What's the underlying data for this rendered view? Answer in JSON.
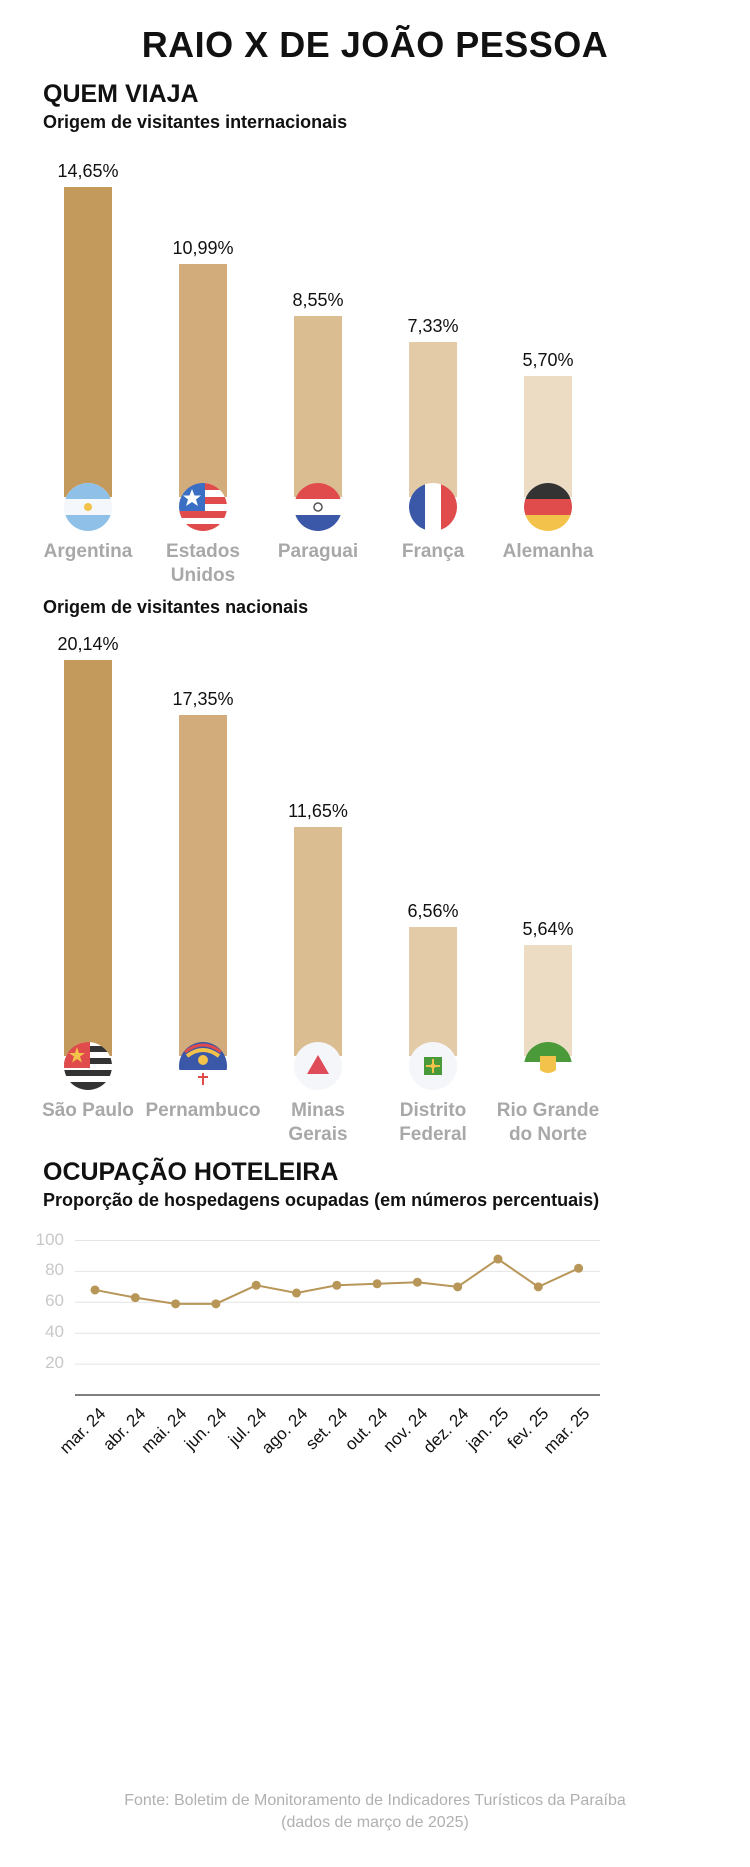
{
  "title": "RAIO X DE JOÃO PESSOA",
  "section1": {
    "heading": "QUEM VIAJA",
    "international": {
      "subtitle": "Origem de visitantes internacionais",
      "items": [
        {
          "label_lines": [
            "Argentina"
          ],
          "value": 14.65,
          "value_label": "14,65%",
          "color": "#c49a5c",
          "flag": "argentina-flag-icon"
        },
        {
          "label_lines": [
            "Estados",
            "Unidos"
          ],
          "value": 10.99,
          "value_label": "10,99%",
          "color": "#d2ac7a",
          "flag": "usa-flag-icon"
        },
        {
          "label_lines": [
            "Paraguai"
          ],
          "value": 8.55,
          "value_label": "8,55%",
          "color": "#dbbd92",
          "flag": "paraguay-flag-icon"
        },
        {
          "label_lines": [
            "França"
          ],
          "value": 7.33,
          "value_label": "7,33%",
          "color": "#e3cba7",
          "flag": "france-flag-icon"
        },
        {
          "label_lines": [
            "Alemanha"
          ],
          "value": 5.7,
          "value_label": "5,70%",
          "color": "#ecdcc4",
          "flag": "germany-flag-icon"
        }
      ]
    },
    "national": {
      "subtitle": "Origem de visitantes nacionais",
      "items": [
        {
          "label_lines": [
            "São Paulo"
          ],
          "value": 20.14,
          "value_label": "20,14%",
          "color": "#c49a5c",
          "flag": "sao-paulo-flag-icon"
        },
        {
          "label_lines": [
            "Pernambuco"
          ],
          "value": 17.35,
          "value_label": "17,35%",
          "color": "#d2ac7a",
          "flag": "pernambuco-flag-icon"
        },
        {
          "label_lines": [
            "Minas",
            "Gerais"
          ],
          "value": 11.65,
          "value_label": "11,65%",
          "color": "#dbbd92",
          "flag": "minas-gerais-flag-icon"
        },
        {
          "label_lines": [
            "Distrito",
            "Federal"
          ],
          "value": 6.56,
          "value_label": "6,56%",
          "color": "#e3cba7",
          "flag": "distrito-federal-flag-icon"
        },
        {
          "label_lines": [
            "Rio Grande",
            "do Norte"
          ],
          "value": 5.64,
          "value_label": "5,64%",
          "color": "#ecdcc4",
          "flag": "rio-grande-do-norte-flag-icon"
        }
      ]
    }
  },
  "section2": {
    "heading": "OCUPAÇÃO HOTELEIRA",
    "subtitle": "Proporção de hospedagens ocupadas (em números percentuais)"
  },
  "chart_data": [
    {
      "type": "bar",
      "title": "Origem de visitantes internacionais",
      "categories": [
        "Argentina",
        "Estados Unidos",
        "Paraguai",
        "França",
        "Alemanha"
      ],
      "values": [
        14.65,
        10.99,
        8.55,
        7.33,
        5.7
      ],
      "unit": "%"
    },
    {
      "type": "bar",
      "title": "Origem de visitantes nacionais",
      "categories": [
        "São Paulo",
        "Pernambuco",
        "Minas Gerais",
        "Distrito Federal",
        "Rio Grande do Norte"
      ],
      "values": [
        20.14,
        17.35,
        11.65,
        6.56,
        5.64
      ],
      "unit": "%"
    },
    {
      "type": "line",
      "title": "Proporção de hospedagens ocupadas (em números percentuais)",
      "categories": [
        "mar. 24",
        "abr. 24",
        "mai. 24",
        "jun. 24",
        "jul. 24",
        "ago. 24",
        "set. 24",
        "out. 24",
        "nov. 24",
        "dez. 24",
        "jan. 25",
        "fev. 25",
        "mar. 25"
      ],
      "values": [
        68,
        63,
        59,
        59,
        71,
        66,
        71,
        72,
        73,
        70,
        88,
        70,
        82
      ],
      "yticks": [
        20,
        40,
        60,
        80,
        100
      ],
      "ylim": [
        0,
        100
      ],
      "line_color": "#b89658"
    }
  ],
  "source": {
    "line1": "Fonte: Boletim de Monitoramento de Indicadores Turísticos da Paraíba",
    "line2": "(dados de março de 2025)"
  }
}
